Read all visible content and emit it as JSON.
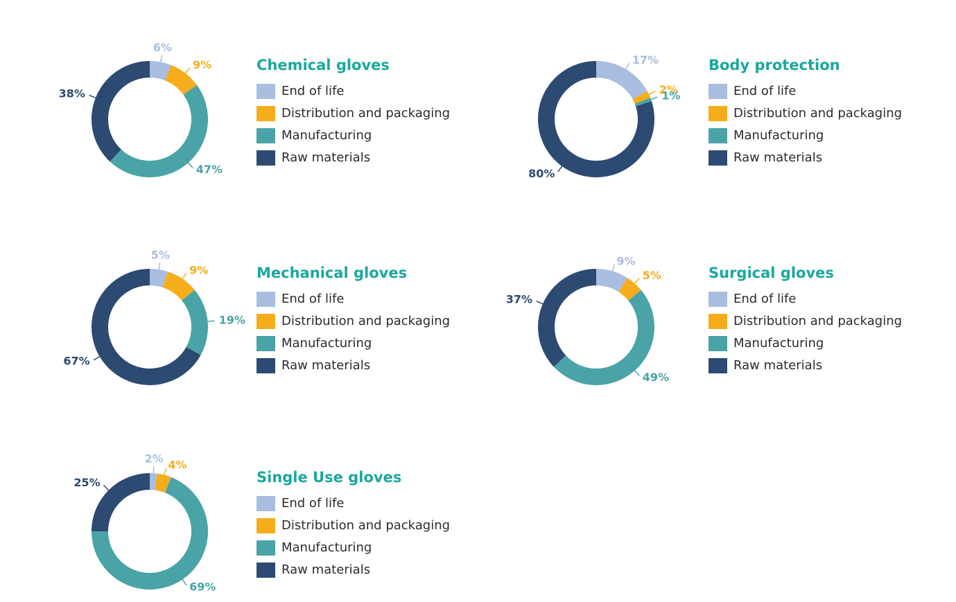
{
  "chart_data": [
    {
      "type": "donut",
      "title": "Chemical gloves",
      "categories": [
        "End of life",
        "Distribution and packaging",
        "Manufacturing",
        "Raw materials"
      ],
      "values": [
        6,
        9,
        47,
        38
      ],
      "value_labels": [
        "6%",
        "9%",
        "47%",
        "38%"
      ],
      "colors": [
        "#a9bde0",
        "#f5ad1c",
        "#4aa3a6",
        "#2c4a72"
      ]
    },
    {
      "type": "donut",
      "title": "Body protection",
      "categories": [
        "End of life",
        "Distribution and packaging",
        "Manufacturing",
        "Raw materials"
      ],
      "values": [
        17,
        2,
        1,
        80
      ],
      "value_labels": [
        "17%",
        "2%",
        "1%",
        "80%"
      ],
      "colors": [
        "#a9bde0",
        "#f5ad1c",
        "#4aa3a6",
        "#2c4a72"
      ]
    },
    {
      "type": "donut",
      "title": "Mechanical gloves",
      "categories": [
        "End of life",
        "Distribution and packaging",
        "Manufacturing",
        "Raw materials"
      ],
      "values": [
        5,
        9,
        19,
        67
      ],
      "value_labels": [
        "5%",
        "9%",
        "19%",
        "67%"
      ],
      "colors": [
        "#a9bde0",
        "#f5ad1c",
        "#4aa3a6",
        "#2c4a72"
      ]
    },
    {
      "type": "donut",
      "title": "Surgical gloves",
      "categories": [
        "End of life",
        "Distribution and packaging",
        "Manufacturing",
        "Raw materials"
      ],
      "values": [
        9,
        5,
        49,
        37
      ],
      "value_labels": [
        "9%",
        "5%",
        "49%",
        "37%"
      ],
      "colors": [
        "#a9bde0",
        "#f5ad1c",
        "#4aa3a6",
        "#2c4a72"
      ]
    },
    {
      "type": "donut",
      "title": "Single Use gloves",
      "categories": [
        "End of life",
        "Distribution and packaging",
        "Manufacturing",
        "Raw materials"
      ],
      "values": [
        2,
        4,
        69,
        25
      ],
      "value_labels": [
        "2%",
        "4%",
        "69%",
        "25%"
      ],
      "colors": [
        "#a9bde0",
        "#f5ad1c",
        "#4aa3a6",
        "#2c4a72"
      ]
    }
  ]
}
